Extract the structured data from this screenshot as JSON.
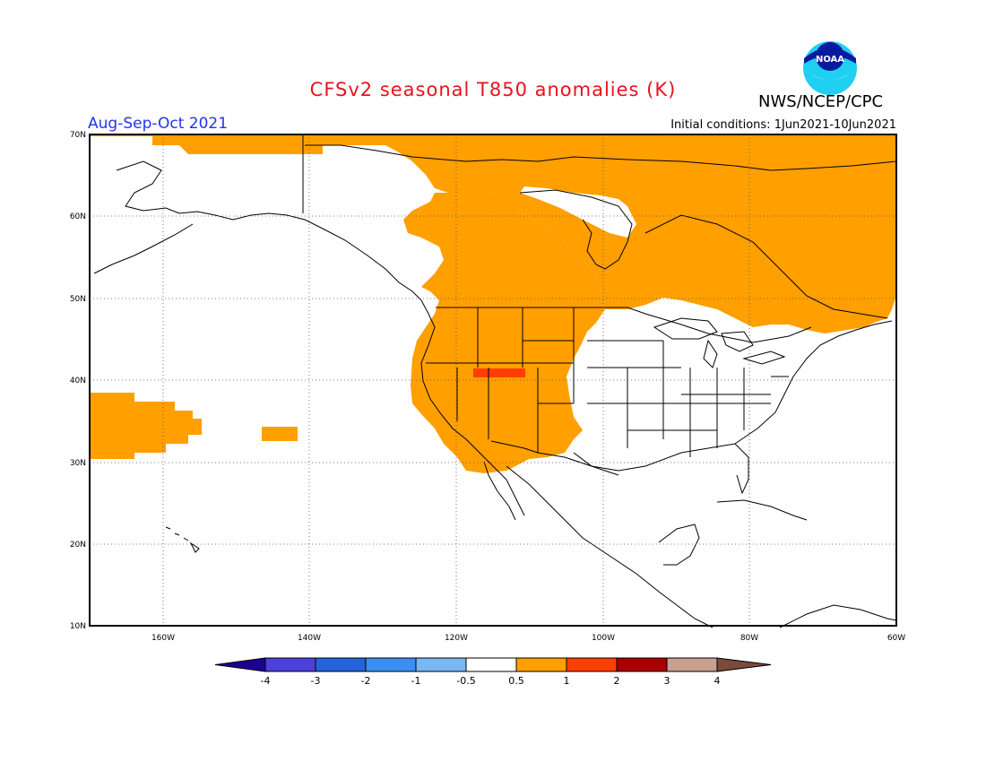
{
  "header": {
    "title": "CFSv2 seasonal T850 anomalies (K)",
    "agency": "NWS/NCEP/CPC",
    "logo_text": "NOAA",
    "season": "Aug-Sep-Oct 2021",
    "initial_conditions": "Initial conditions: 1Jun2021-10Jun2021"
  },
  "map": {
    "lat_labels": [
      "70N",
      "60N",
      "50N",
      "40N",
      "30N",
      "20N",
      "10N"
    ],
    "lon_labels": [
      "160W",
      "140W",
      "120W",
      "100W",
      "80W",
      "60W"
    ],
    "anomaly_color": "#ff9f00",
    "strong_anomaly_color": "#ff3f00"
  },
  "colorbar": {
    "labels": [
      "-4",
      "-3",
      "-2",
      "-1",
      "-0.5",
      "0.5",
      "1",
      "2",
      "3",
      "4"
    ],
    "colors": [
      "#1e0090",
      "#4d40d8",
      "#2463d8",
      "#3c8ff0",
      "#78b8f5",
      "#ffffff",
      "#ff9f00",
      "#ff3f00",
      "#a80000",
      "#c8a090",
      "#7a4a3a"
    ]
  }
}
